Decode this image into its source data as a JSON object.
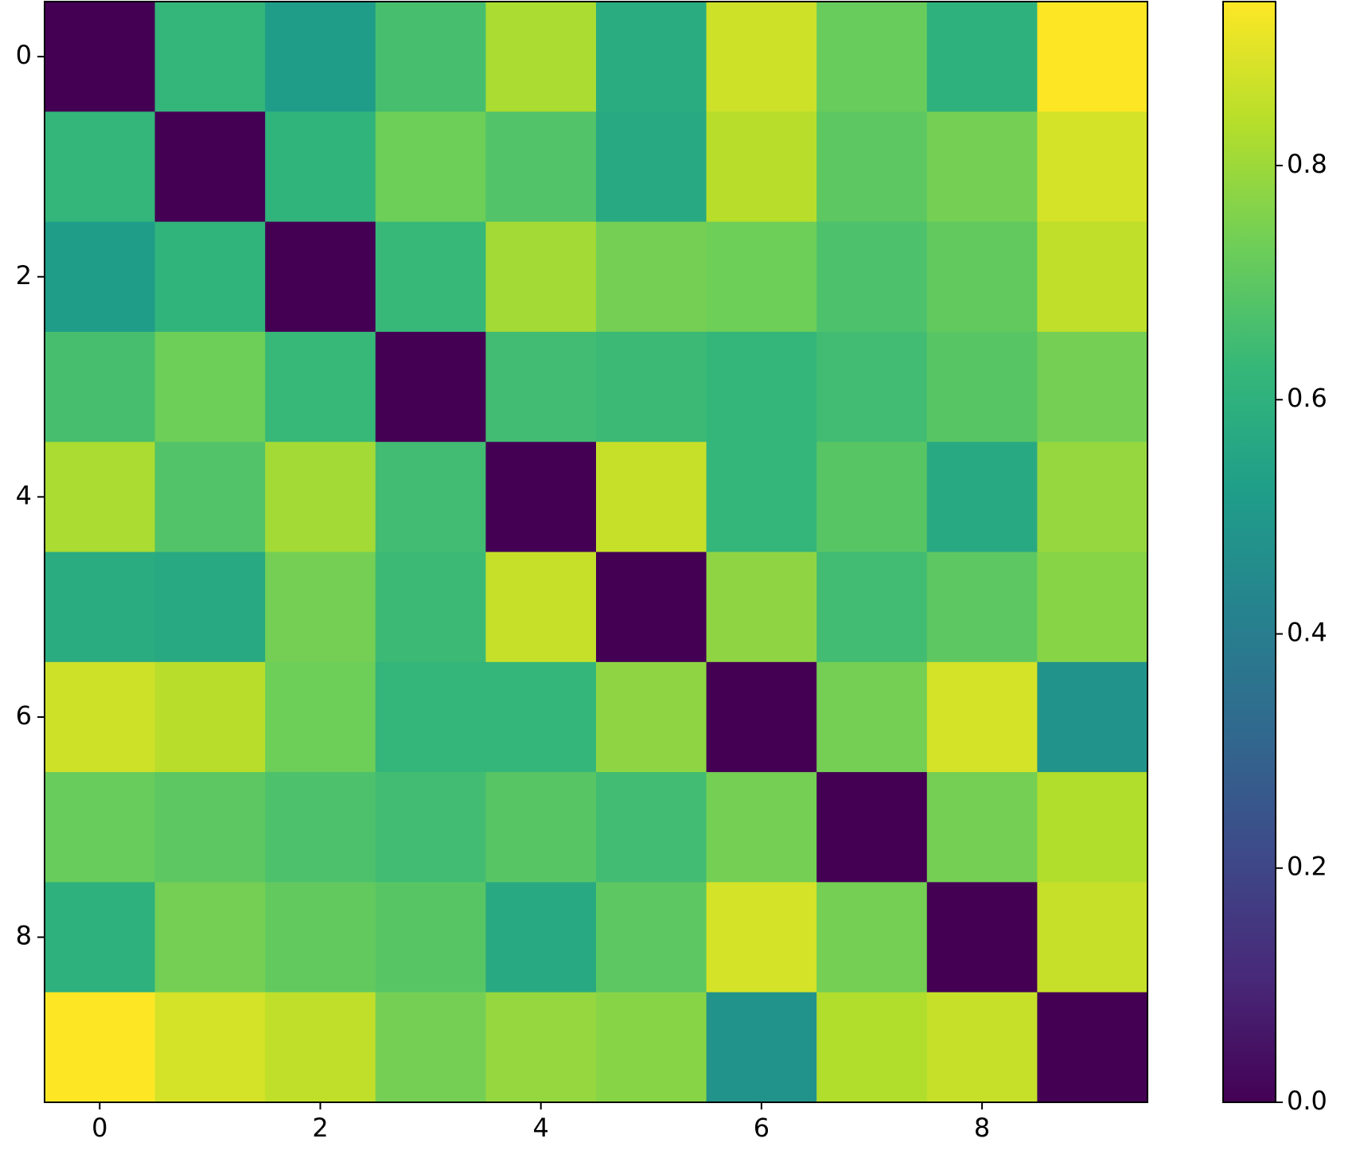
{
  "chart_data": {
    "type": "heatmap",
    "colormap": "viridis",
    "values": [
      [
        0,
        0.62,
        0.52,
        0.66,
        0.82,
        0.58,
        0.87,
        0.72,
        0.6,
        0.94
      ],
      [
        0.62,
        0,
        0.61,
        0.73,
        0.68,
        0.57,
        0.84,
        0.7,
        0.74,
        0.88
      ],
      [
        0.52,
        0.61,
        0,
        0.63,
        0.81,
        0.74,
        0.73,
        0.67,
        0.71,
        0.85
      ],
      [
        0.66,
        0.73,
        0.63,
        0,
        0.65,
        0.64,
        0.62,
        0.65,
        0.69,
        0.74
      ],
      [
        0.82,
        0.68,
        0.81,
        0.65,
        0,
        0.86,
        0.62,
        0.69,
        0.57,
        0.79
      ],
      [
        0.58,
        0.57,
        0.74,
        0.64,
        0.86,
        0,
        0.78,
        0.65,
        0.7,
        0.77
      ],
      [
        0.87,
        0.84,
        0.73,
        0.62,
        0.62,
        0.78,
        0,
        0.74,
        0.88,
        0.48
      ],
      [
        0.72,
        0.7,
        0.67,
        0.65,
        0.69,
        0.65,
        0.74,
        0,
        0.74,
        0.83
      ],
      [
        0.6,
        0.74,
        0.71,
        0.69,
        0.57,
        0.7,
        0.88,
        0.74,
        0,
        0.86
      ],
      [
        0.94,
        0.88,
        0.85,
        0.74,
        0.79,
        0.77,
        0.48,
        0.83,
        0.86,
        0
      ]
    ],
    "xlim": [
      -0.5,
      9.5
    ],
    "ylim": [
      9.5,
      -0.5
    ],
    "xticks": [
      0,
      2,
      4,
      6,
      8
    ],
    "yticks": [
      0,
      2,
      4,
      6,
      8
    ],
    "clim": [
      0,
      0.94
    ],
    "cticks": [
      {
        "value": 0,
        "label": "0.0"
      },
      0.2,
      0.4,
      0.6,
      0.8
    ]
  }
}
